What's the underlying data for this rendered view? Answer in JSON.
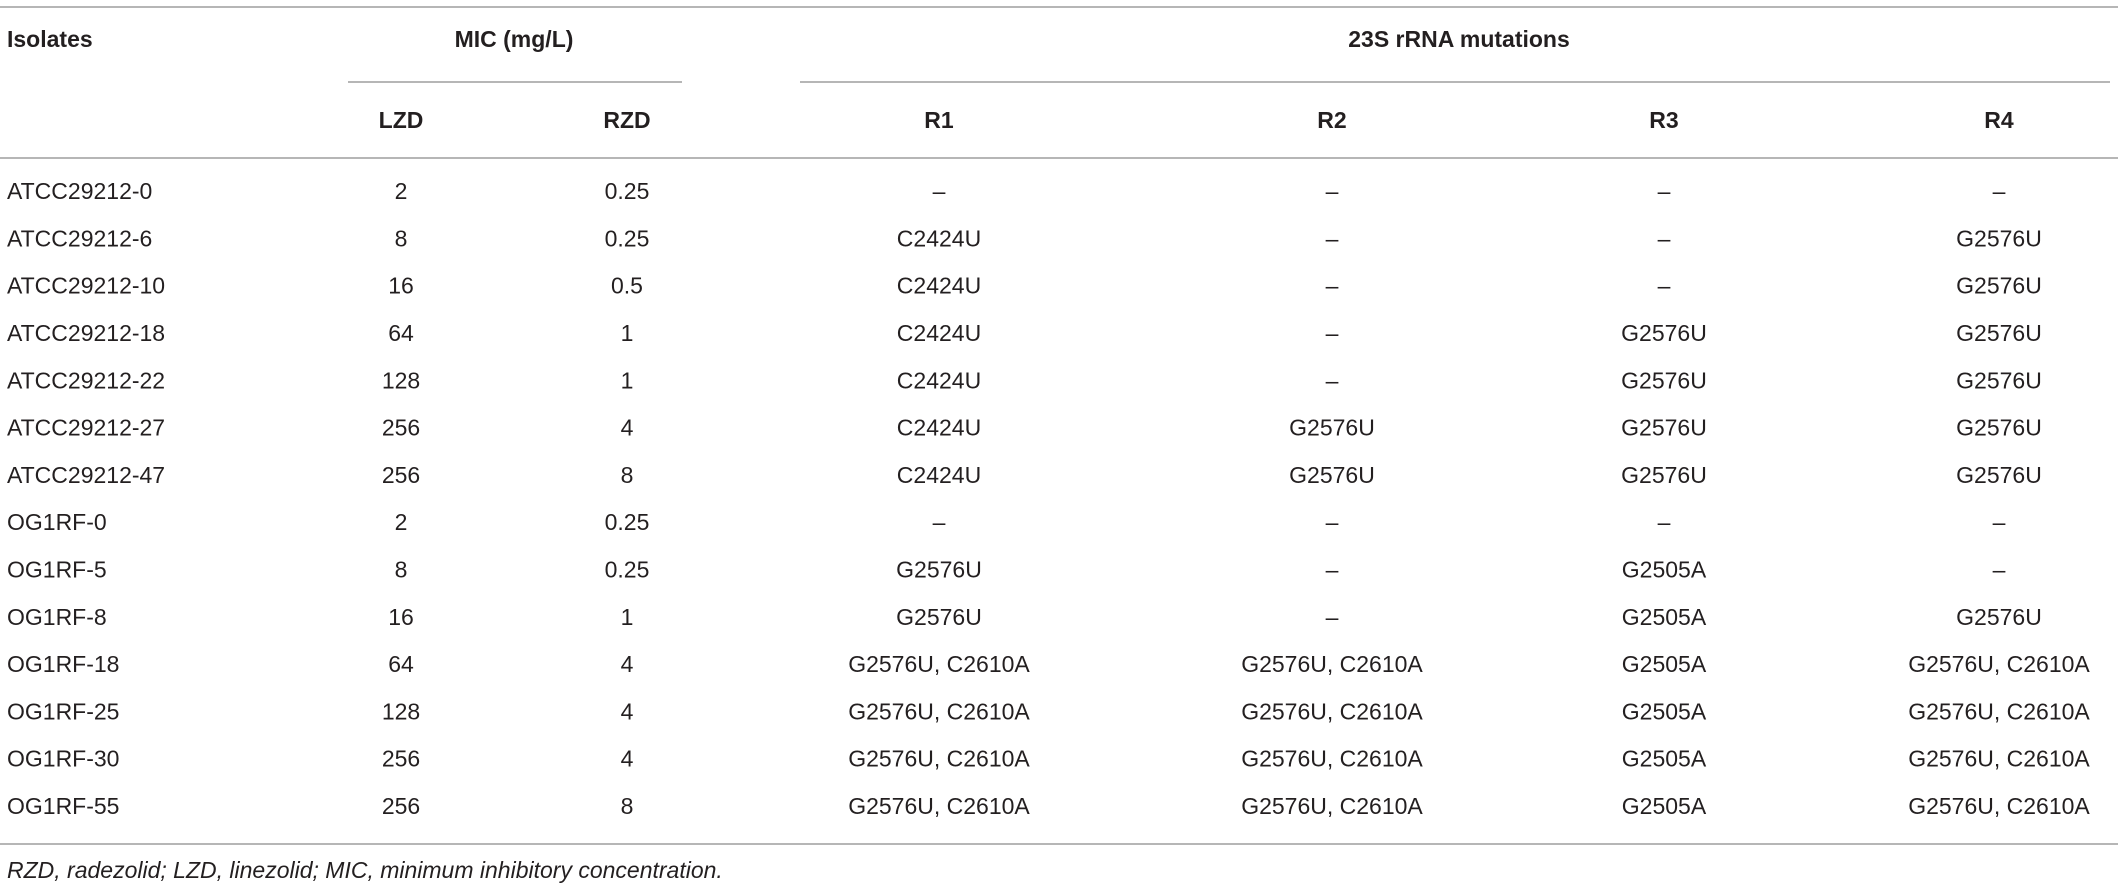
{
  "table": {
    "headers": {
      "isolates": "Isolates",
      "mic": "MIC (mg/L)",
      "mutations": "23S rRNA mutations",
      "columns": [
        "LZD",
        "RZD",
        "R1",
        "R2",
        "R3",
        "R4"
      ]
    },
    "rows": [
      [
        "ATCC29212-0",
        "2",
        "0.25",
        "–",
        "–",
        "–",
        "–"
      ],
      [
        "ATCC29212-6",
        "8",
        "0.25",
        "C2424U",
        "–",
        "–",
        "G2576U"
      ],
      [
        "ATCC29212-10",
        "16",
        "0.5",
        "C2424U",
        "–",
        "–",
        "G2576U"
      ],
      [
        "ATCC29212-18",
        "64",
        "1",
        "C2424U",
        "–",
        "G2576U",
        "G2576U"
      ],
      [
        "ATCC29212-22",
        "128",
        "1",
        "C2424U",
        "–",
        "G2576U",
        "G2576U"
      ],
      [
        "ATCC29212-27",
        "256",
        "4",
        "C2424U",
        "G2576U",
        "G2576U",
        "G2576U"
      ],
      [
        "ATCC29212-47",
        "256",
        "8",
        "C2424U",
        "G2576U",
        "G2576U",
        "G2576U"
      ],
      [
        "OG1RF-0",
        "2",
        "0.25",
        "–",
        "–",
        "–",
        "–"
      ],
      [
        "OG1RF-5",
        "8",
        "0.25",
        "G2576U",
        "–",
        "G2505A",
        "–"
      ],
      [
        "OG1RF-8",
        "16",
        "1",
        "G2576U",
        "–",
        "G2505A",
        "G2576U"
      ],
      [
        "OG1RF-18",
        "64",
        "4",
        "G2576U, C2610A",
        "G2576U, C2610A",
        "G2505A",
        "G2576U, C2610A"
      ],
      [
        "OG1RF-25",
        "128",
        "4",
        "G2576U, C2610A",
        "G2576U, C2610A",
        "G2505A",
        "G2576U, C2610A"
      ],
      [
        "OG1RF-30",
        "256",
        "4",
        "G2576U, C2610A",
        "G2576U, C2610A",
        "G2505A",
        "G2576U, C2610A"
      ],
      [
        "OG1RF-55",
        "256",
        "8",
        "G2576U, C2610A",
        "G2576U, C2610A",
        "G2505A",
        "G2576U, C2610A"
      ]
    ],
    "footnote": "RZD, radezolid; LZD, linezolid; MIC, minimum inhibitory concentration."
  }
}
